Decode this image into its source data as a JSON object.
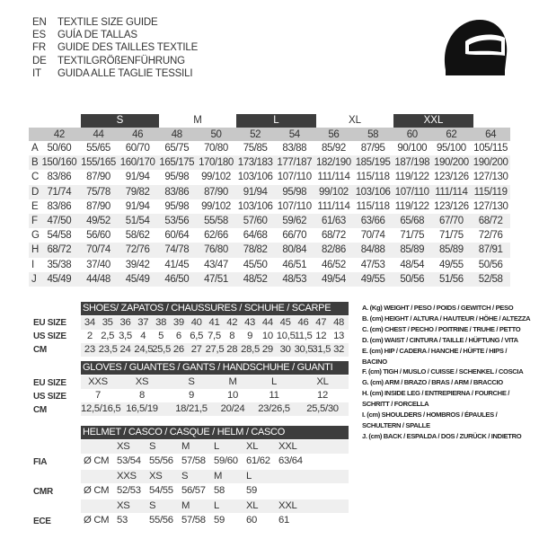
{
  "titles": [
    {
      "code": "EN",
      "text": "TEXTILE SIZE GUIDE"
    },
    {
      "code": "ES",
      "text": "GUÍA DE TALLAS"
    },
    {
      "code": "FR",
      "text": "GUIDE DES TAILLES TEXTILE"
    },
    {
      "code": "DE",
      "text": "TEXTILGRÖßENFÜHRUNG"
    },
    {
      "code": "IT",
      "text": "GUIDA ALLE TAGLIE TESSILI"
    }
  ],
  "size_bands": [
    "S",
    "M",
    "L",
    "XL",
    "XXL"
  ],
  "main_table": {
    "columns": [
      "42",
      "44",
      "46",
      "48",
      "50",
      "52",
      "54",
      "56",
      "58",
      "60",
      "62",
      "64"
    ],
    "rows": [
      {
        "label": "A",
        "values": [
          "50/60",
          "55/65",
          "60/70",
          "65/75",
          "70/80",
          "75/85",
          "83/88",
          "85/92",
          "87/95",
          "90/100",
          "95/100",
          "105/115"
        ]
      },
      {
        "label": "B",
        "values": [
          "150/160",
          "155/165",
          "160/170",
          "165/175",
          "170/180",
          "173/183",
          "177/187",
          "182/190",
          "185/195",
          "187/198",
          "190/200",
          "190/200"
        ]
      },
      {
        "label": "C",
        "values": [
          "83/86",
          "87/90",
          "91/94",
          "95/98",
          "99/102",
          "103/106",
          "107/110",
          "111/114",
          "115/118",
          "119/122",
          "123/126",
          "127/130"
        ]
      },
      {
        "label": "D",
        "values": [
          "71/74",
          "75/78",
          "79/82",
          "83/86",
          "87/90",
          "91/94",
          "95/98",
          "99/102",
          "103/106",
          "107/110",
          "111/114",
          "115/119"
        ]
      },
      {
        "label": "E",
        "values": [
          "83/86",
          "87/90",
          "91/94",
          "95/98",
          "99/102",
          "103/106",
          "107/110",
          "111/114",
          "115/118",
          "119/122",
          "123/126",
          "127/130"
        ]
      },
      {
        "label": "F",
        "values": [
          "47/50",
          "49/52",
          "51/54",
          "53/56",
          "55/58",
          "57/60",
          "59/62",
          "61/63",
          "63/66",
          "65/68",
          "67/70",
          "68/72"
        ]
      },
      {
        "label": "G",
        "values": [
          "54/58",
          "56/60",
          "58/62",
          "60/64",
          "62/66",
          "64/68",
          "66/70",
          "68/72",
          "70/74",
          "71/75",
          "71/75",
          "72/76"
        ]
      },
      {
        "label": "H",
        "values": [
          "68/72",
          "70/74",
          "72/76",
          "74/78",
          "76/80",
          "78/82",
          "80/84",
          "82/86",
          "84/88",
          "85/89",
          "85/89",
          "87/91"
        ]
      },
      {
        "label": "I",
        "values": [
          "35/38",
          "37/40",
          "39/42",
          "41/45",
          "43/47",
          "45/50",
          "46/51",
          "46/52",
          "47/53",
          "48/54",
          "49/55",
          "50/56"
        ]
      },
      {
        "label": "J",
        "values": [
          "45/49",
          "44/48",
          "45/49",
          "46/50",
          "47/51",
          "48/52",
          "48/53",
          "49/54",
          "49/55",
          "50/56",
          "51/56",
          "52/58"
        ]
      }
    ]
  },
  "shoes": {
    "title": "SHOES/ ZAPATOS / CHAUSSURES / SCHUHE / SCARPE",
    "rows": [
      {
        "label": "EU SIZE",
        "values": [
          "34",
          "35",
          "36",
          "37",
          "38",
          "39",
          "40",
          "41",
          "42",
          "43",
          "44",
          "45",
          "46",
          "47",
          "48"
        ]
      },
      {
        "label": "US SIZE",
        "values": [
          "2",
          "2,5",
          "3,5",
          "4",
          "5",
          "6",
          "6,5",
          "7,5",
          "8",
          "9",
          "10",
          "10,5",
          "11,5",
          "12",
          "13"
        ]
      },
      {
        "label": "CM",
        "values": [
          "23",
          "23,5",
          "24",
          "24,5",
          "25,5",
          "26",
          "27",
          "27,5",
          "28",
          "28,5",
          "29",
          "30",
          "30,5",
          "31,5",
          "32"
        ]
      }
    ]
  },
  "gloves": {
    "title": "GLOVES / GUANTES / GANTS / HANDSCHUHE / GUANTI",
    "rows": [
      {
        "label": "EU SIZE",
        "values": [
          "XXS",
          "XS",
          "S",
          "M",
          "L",
          "XL"
        ]
      },
      {
        "label": "US SIZE",
        "values": [
          "7",
          "8",
          "9",
          "10",
          "11",
          "12"
        ]
      },
      {
        "label": "CM",
        "values": [
          "12,5/16,5",
          "16,5/19",
          "18/21,5",
          "20/24",
          "23/26,5",
          "25,5/30"
        ]
      }
    ]
  },
  "helmet": {
    "title": "HELMET / CASCO / CASQUE / HELM / CASCO",
    "groups": [
      {
        "label": "FIA",
        "unit": "Ø CM",
        "sizes": [
          "XS",
          "S",
          "M",
          "L",
          "XL",
          "XXL"
        ],
        "values": [
          "53/54",
          "55/56",
          "57/58",
          "59/60",
          "61/62",
          "63/64"
        ]
      },
      {
        "label": "CMR",
        "unit": "Ø CM",
        "sizes": [
          "XXS",
          "XS",
          "S",
          "M",
          "L"
        ],
        "values": [
          "52/53",
          "54/55",
          "56/57",
          "58",
          "59"
        ]
      },
      {
        "label": "ECE",
        "unit": "Ø CM",
        "sizes": [
          "XS",
          "S",
          "M",
          "L",
          "XL",
          "XXL"
        ],
        "values": [
          "53",
          "55/56",
          "57/58",
          "59",
          "60",
          "61"
        ]
      }
    ]
  },
  "legend": [
    "A. (Kg) WEIGHT / PESO / POIDS / GEWITCH / PESO",
    "B. (cm) HEIGHT / ALTURA / HAUTEUR / HÖHE / ALTEZZA",
    "C. (cm) CHEST / PECHO / POITRINE / TRUHE / PETTO",
    "D. (cm) WAIST / CINTURA / TAILLE / HÜFTUNG / VITA",
    "E. (cm) HIP / CADERA / HANCHE / HÜFTE / HIPS /  BACINO",
    "F. (cm) TIGH / MUSLO / CUISSE / SCHENKEL / COSCIA",
    "G. (cm) ARM  / BRAZO / BRAS / ARM / BRACCIO",
    "H. (cm) INSIDE LEG / ENTREPIERNA / FOURCHE / SCHRITT / FORCELLA",
    "I. (cm) SHOULDERS / HOMBROS / ÉPAULES / SCHULTERN / SPALLE",
    "J. (cm) BACK / ESPALDA / DOS / ZURÜCK / INDIETRO"
  ],
  "colors": {
    "dark_band": "#3d3d3d",
    "header_gray": "#c8c8c8",
    "row_shade": "#efefef"
  },
  "icons": [
    "helmet-icon"
  ]
}
